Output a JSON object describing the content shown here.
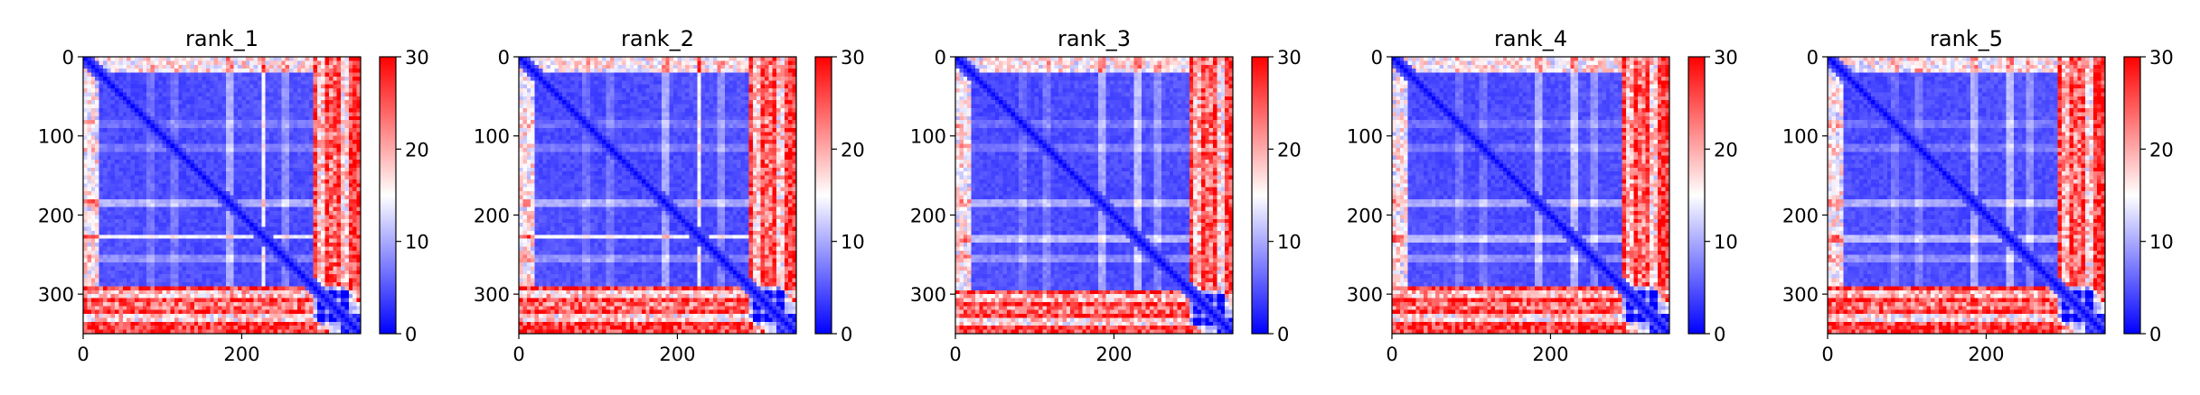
{
  "chart_data": [
    {
      "type": "heatmap",
      "title": "rank_1",
      "xlabel": "",
      "ylabel": "",
      "xlim": [
        0,
        350
      ],
      "ylim": [
        350,
        0
      ],
      "x_ticks": [
        "0",
        "200"
      ],
      "y_ticks": [
        "0",
        "100",
        "200",
        "300"
      ],
      "colorbar": {
        "range": [
          0,
          30
        ],
        "ticks": [
          "0",
          "10",
          "20",
          "30"
        ],
        "cmap": "bwr"
      },
      "low_region": [
        0,
        290
      ],
      "stripes": [
        [
          85,
          0.12
        ],
        [
          115,
          0.14
        ],
        [
          185,
          0.32
        ],
        [
          228,
          0.55
        ],
        [
          255,
          0.2
        ]
      ],
      "edge_rows": [
        [
          300,
          0.35
        ],
        [
          315,
          0.15
        ],
        [
          330,
          0.4
        ]
      ]
    },
    {
      "type": "heatmap",
      "title": "rank_2",
      "xlabel": "",
      "ylabel": "",
      "xlim": [
        0,
        350
      ],
      "ylim": [
        350,
        0
      ],
      "x_ticks": [
        "0",
        "200"
      ],
      "y_ticks": [
        "0",
        "100",
        "200",
        "300"
      ],
      "colorbar": {
        "range": [
          0,
          30
        ],
        "ticks": [
          "0",
          "10",
          "20",
          "30"
        ],
        "cmap": "bwr"
      },
      "low_region": [
        0,
        290
      ],
      "stripes": [
        [
          85,
          0.12
        ],
        [
          115,
          0.14
        ],
        [
          185,
          0.3
        ],
        [
          228,
          0.55
        ],
        [
          255,
          0.2
        ]
      ],
      "edge_rows": [
        [
          300,
          0.35
        ],
        [
          315,
          0.15
        ],
        [
          330,
          0.4
        ]
      ]
    },
    {
      "type": "heatmap",
      "title": "rank_3",
      "xlabel": "",
      "ylabel": "",
      "xlim": [
        0,
        350
      ],
      "ylim": [
        350,
        0
      ],
      "x_ticks": [
        "0",
        "200"
      ],
      "y_ticks": [
        "0",
        "100",
        "200",
        "300"
      ],
      "colorbar": {
        "range": [
          0,
          30
        ],
        "ticks": [
          "0",
          "10",
          "20",
          "30"
        ],
        "cmap": "bwr"
      },
      "low_region": [
        0,
        295
      ],
      "stripes": [
        [
          85,
          0.12
        ],
        [
          115,
          0.14
        ],
        [
          185,
          0.3
        ],
        [
          230,
          0.35
        ],
        [
          255,
          0.2
        ]
      ],
      "edge_rows": [
        [
          305,
          0.3
        ],
        [
          320,
          0.15
        ],
        [
          335,
          0.4
        ]
      ]
    },
    {
      "type": "heatmap",
      "title": "rank_4",
      "xlabel": "",
      "ylabel": "",
      "xlim": [
        0,
        350
      ],
      "ylim": [
        350,
        0
      ],
      "x_ticks": [
        "0",
        "200"
      ],
      "y_ticks": [
        "0",
        "100",
        "200",
        "300"
      ],
      "colorbar": {
        "range": [
          0,
          30
        ],
        "ticks": [
          "0",
          "10",
          "20",
          "30"
        ],
        "cmap": "bwr"
      },
      "low_region": [
        0,
        290
      ],
      "stripes": [
        [
          85,
          0.12
        ],
        [
          115,
          0.14
        ],
        [
          185,
          0.3
        ],
        [
          230,
          0.35
        ],
        [
          255,
          0.2
        ]
      ],
      "edge_rows": [
        [
          300,
          0.3
        ],
        [
          315,
          0.15
        ],
        [
          330,
          0.4
        ]
      ]
    },
    {
      "type": "heatmap",
      "title": "rank_5",
      "xlabel": "",
      "ylabel": "",
      "xlim": [
        0,
        350
      ],
      "ylim": [
        350,
        0
      ],
      "x_ticks": [
        "0",
        "200"
      ],
      "y_ticks": [
        "0",
        "100",
        "200",
        "300"
      ],
      "colorbar": {
        "range": [
          0,
          30
        ],
        "ticks": [
          "0",
          "10",
          "20",
          "30"
        ],
        "cmap": "bwr"
      },
      "low_region": [
        0,
        290
      ],
      "stripes": [
        [
          85,
          0.12
        ],
        [
          115,
          0.14
        ],
        [
          185,
          0.3
        ],
        [
          230,
          0.35
        ],
        [
          255,
          0.2
        ]
      ],
      "edge_rows": [
        [
          300,
          0.3
        ],
        [
          315,
          0.15
        ],
        [
          330,
          0.4
        ]
      ]
    }
  ]
}
